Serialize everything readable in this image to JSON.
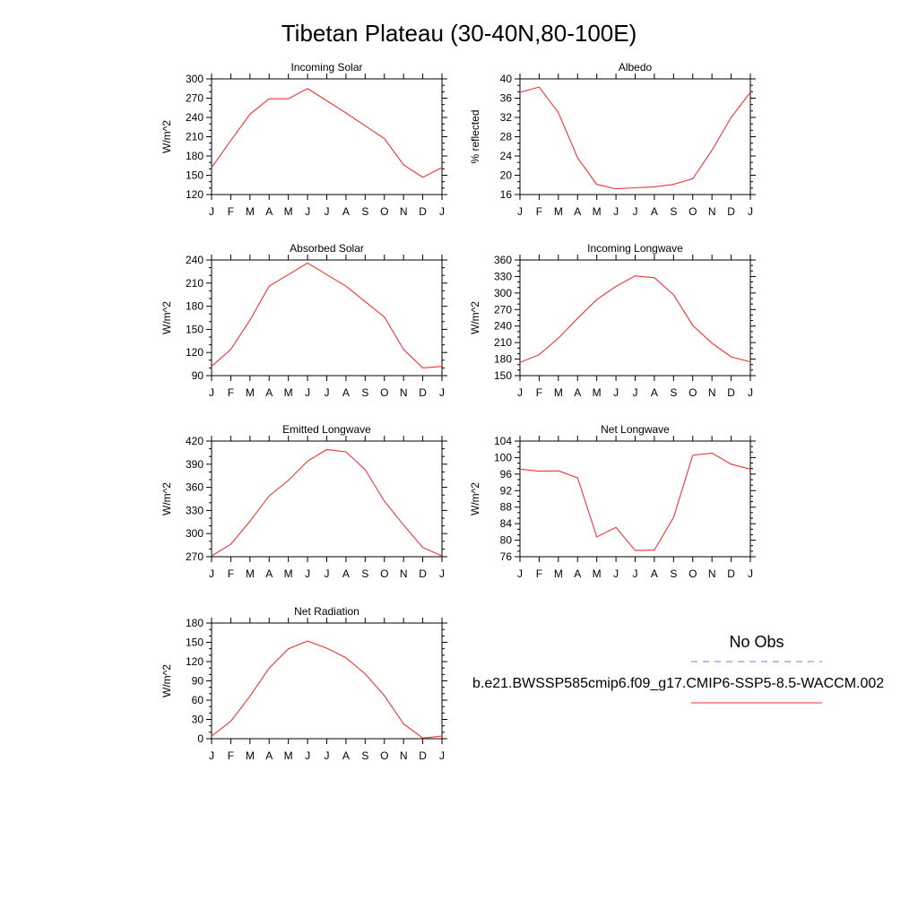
{
  "title": "Tibetan Plateau (30-40N,80-100E)",
  "months": [
    "J",
    "F",
    "M",
    "A",
    "M",
    "J",
    "J",
    "A",
    "S",
    "O",
    "N",
    "D",
    "J"
  ],
  "legend": {
    "obs_label": "No Obs",
    "obs_color": "#7777ee",
    "model_label": "b.e21.BWSSP585cmip6.f09_g17.CMIP6-SSP5-8.5-WACCM.002",
    "model_color": "#ee3333"
  },
  "chart_data": [
    {
      "type": "line",
      "title": "Incoming Solar",
      "ylabel": "W/m^2",
      "ylim": [
        120,
        300
      ],
      "yticks": [
        120,
        150,
        180,
        210,
        240,
        270,
        300
      ],
      "series": [
        {
          "values": [
            162,
            204,
            245,
            269,
            269,
            285,
            266,
            247,
            227,
            207,
            166,
            147,
            162
          ]
        }
      ]
    },
    {
      "type": "line",
      "title": "Albedo",
      "ylabel": "% reflected",
      "ylim": [
        16,
        40
      ],
      "yticks": [
        16,
        20,
        24,
        28,
        32,
        36,
        40
      ],
      "series": [
        {
          "values": [
            37.2,
            38.3,
            33.0,
            23.6,
            18.1,
            17.2,
            17.4,
            17.6,
            18.1,
            19.3,
            25.2,
            32.0,
            37.2
          ]
        }
      ]
    },
    {
      "type": "line",
      "title": "Absorbed Solar",
      "ylabel": "W/m^2",
      "ylim": [
        90,
        240
      ],
      "yticks": [
        90,
        120,
        150,
        180,
        210,
        240
      ],
      "series": [
        {
          "values": [
            102,
            124,
            162,
            206,
            221,
            236,
            221,
            206,
            186,
            166,
            124,
            100,
            102
          ]
        }
      ]
    },
    {
      "type": "line",
      "title": "Incoming Longwave",
      "ylabel": "W/m^2",
      "ylim": [
        150,
        360
      ],
      "yticks": [
        150,
        180,
        210,
        240,
        270,
        300,
        330,
        360
      ],
      "series": [
        {
          "values": [
            174,
            188,
            218,
            254,
            288,
            312,
            331,
            328,
            297,
            241,
            209,
            184,
            175
          ]
        }
      ]
    },
    {
      "type": "line",
      "title": "Emitted Longwave",
      "ylabel": "W/m^2",
      "ylim": [
        270,
        420
      ],
      "yticks": [
        270,
        300,
        330,
        360,
        390,
        420
      ],
      "series": [
        {
          "values": [
            271,
            286,
            316,
            349,
            369,
            394,
            409,
            406,
            383,
            342,
            311,
            282,
            271
          ]
        }
      ]
    },
    {
      "type": "line",
      "title": "Net Longwave",
      "ylabel": "W/m^2",
      "ylim": [
        76,
        104
      ],
      "yticks": [
        76,
        80,
        84,
        88,
        92,
        96,
        100,
        104
      ],
      "series": [
        {
          "values": [
            97.2,
            96.7,
            96.8,
            95.1,
            80.8,
            83.1,
            77.5,
            77.6,
            85.5,
            100.6,
            101.1,
            98.4,
            97.2
          ]
        }
      ]
    },
    {
      "type": "line",
      "title": "Net Radiation",
      "ylabel": "W/m^2",
      "ylim": [
        0,
        180
      ],
      "yticks": [
        0,
        30,
        60,
        90,
        120,
        150,
        180
      ],
      "series": [
        {
          "values": [
            4,
            27,
            66,
            110,
            140,
            152,
            141,
            126,
            101,
            67,
            23,
            1,
            4
          ]
        }
      ]
    }
  ]
}
